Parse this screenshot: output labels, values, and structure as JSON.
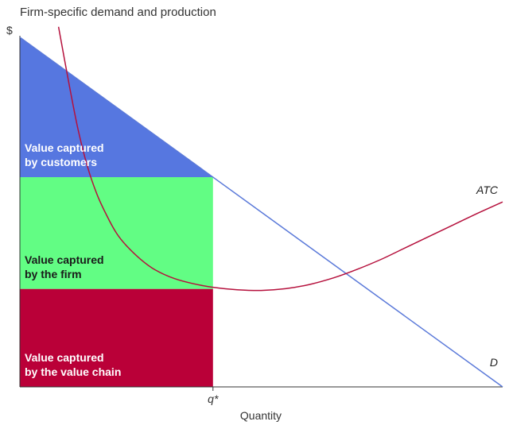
{
  "chart_data": {
    "type": "area",
    "title": "Firm-specific demand and production",
    "xlabel": "Quantity",
    "ylabel": "$",
    "xlim": [
      0,
      100
    ],
    "ylim": [
      0,
      100
    ],
    "grid": false,
    "x_ticks": [
      {
        "value": 40,
        "label": "q*"
      }
    ],
    "series": [
      {
        "name": "D",
        "kind": "line",
        "color": "#5a79d9",
        "x": [
          0,
          100
        ],
        "y": [
          100,
          0
        ]
      },
      {
        "name": "ATC",
        "kind": "curve",
        "color": "#b5103c",
        "x": [
          8,
          10,
          12,
          14,
          16,
          18,
          20,
          22,
          25,
          28,
          32,
          36,
          40,
          45,
          50,
          55,
          60,
          65,
          70,
          75,
          80,
          85,
          90,
          95,
          100
        ],
        "y": [
          103,
          88,
          74,
          63,
          55,
          49,
          44,
          40.5,
          36.5,
          33.5,
          31,
          29.5,
          28.5,
          27.8,
          27.6,
          28.1,
          29.3,
          31.2,
          33.7,
          36.6,
          39.9,
          43.2,
          46.5,
          49.8,
          52.9
        ]
      }
    ],
    "regions": [
      {
        "label_lines": [
          "Value captured",
          "by customers"
        ],
        "color": "#5677e0",
        "text_color": "#ffffff",
        "polygon": [
          [
            0,
            100
          ],
          [
            40,
            60
          ],
          [
            0,
            60
          ]
        ]
      },
      {
        "label_lines": [
          "Value captured",
          "by the firm"
        ],
        "color": "#62fd84",
        "text_color": "#1a1a1a",
        "polygon": [
          [
            0,
            60
          ],
          [
            40,
            60
          ],
          [
            40,
            28
          ],
          [
            0,
            28
          ]
        ]
      },
      {
        "label_lines": [
          "Value captured",
          "by the value chain"
        ],
        "color": "#ba0038",
        "text_color": "#ffffff",
        "polygon": [
          [
            0,
            28
          ],
          [
            40,
            28
          ],
          [
            40,
            0
          ],
          [
            0,
            0
          ]
        ]
      }
    ]
  }
}
